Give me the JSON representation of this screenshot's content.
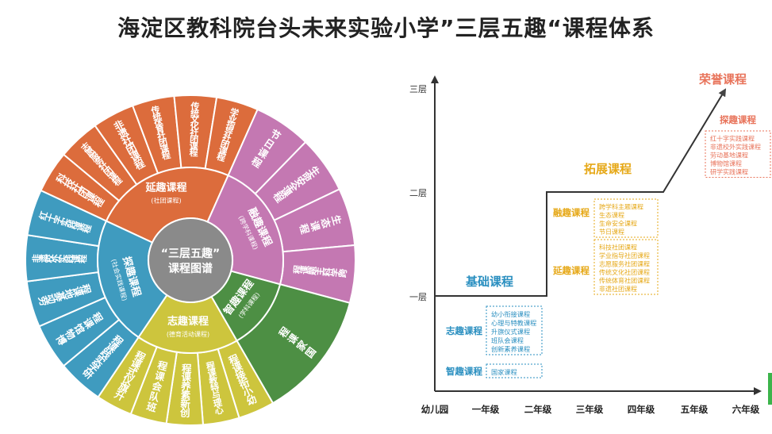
{
  "title": "海淀区教科院台头未来实验小学”三层五趣“课程体系",
  "wheel": {
    "center": [
      "“三层五趣”",
      "课程图谱"
    ],
    "sections": [
      {
        "key": "yanqu",
        "color": "#dc6c3c",
        "inner_label": "延趣课程",
        "inner_sub": "(社团课程)",
        "outer": [
          "科技社团课程",
          "志愿服务社团课程",
          "非遗社团课程",
          "传统体育社团课程",
          "传统文化社团课程",
          "学业指导社团课程"
        ]
      },
      {
        "key": "rongqu",
        "color": "#c478b2",
        "inner_label": "融趣课程",
        "inner_sub": "(跨学科课程)",
        "outer": [
          "节日课程",
          "生命安全课程",
          "生态课程",
          "跨学科主题课程"
        ]
      },
      {
        "key": "zhiqu",
        "color": "#4d8f44",
        "inner_label": "智趣课程",
        "inner_sub": "(学科课程)",
        "outer": [
          "国家课程"
        ]
      },
      {
        "key": "zhiqu2",
        "color": "#cdc53d",
        "inner_label": "志趣课程",
        "inner_sub": "(德育活动课程)",
        "outer": [
          "幼小衔接课程",
          "心理与特教课程",
          "创新素养课程",
          "班队会课程",
          "升旗仪式课程"
        ]
      },
      {
        "key": "tanqu",
        "color": "#3f9bbf",
        "inner_label": "探趣课程",
        "inner_sub": "(社会实践课程)",
        "outer": [
          "研学实践课程",
          "博物馆课程",
          "劳动基地课程",
          "非遗校外实践课程",
          "红十字实践课程"
        ]
      }
    ]
  },
  "stair": {
    "y_labels": [
      "三层",
      "二层",
      "一层"
    ],
    "x_labels": [
      "幼儿园",
      "一年级",
      "二年级",
      "三年级",
      "四年级",
      "五年级",
      "六年级"
    ],
    "stage1": "基础课程",
    "stage2": "拓展课程",
    "stage3": "荣誉课程",
    "groups": {
      "zhiqu_de": {
        "label": "志趣课程",
        "color": "#2a8fc0",
        "items": [
          "幼小衔接课程",
          "心理与特教课程",
          "升旗仪式课程",
          "班队会课程",
          "创新素养课程"
        ]
      },
      "zhiqu_zhi": {
        "label": "智趣课程",
        "color": "#2a8fc0",
        "items": [
          "国家课程"
        ]
      },
      "rong": {
        "label": "融趣课程",
        "color": "#e6a817",
        "items": [
          "跨学科主题课程",
          "生态课程",
          "生命安全课程",
          "节日课程"
        ]
      },
      "yan": {
        "label": "延趣课程",
        "color": "#e6a817",
        "items": [
          "科技社团课程",
          "学业指导社团课程",
          "志愿服务社团课程",
          "传统文化社团课程",
          "传统体育社团课程",
          "非遗社团课程"
        ]
      },
      "tan": {
        "label": "探趣课程",
        "color": "#e8735a",
        "items": [
          "红十字实践课程",
          "非遗校外实践课程",
          "劳动基地课程",
          "博物馆课程",
          "研学实践课程"
        ]
      }
    },
    "colors": {
      "stage1": "#2a8fc0",
      "stage2": "#e6a817",
      "stage3": "#e8735a"
    }
  }
}
